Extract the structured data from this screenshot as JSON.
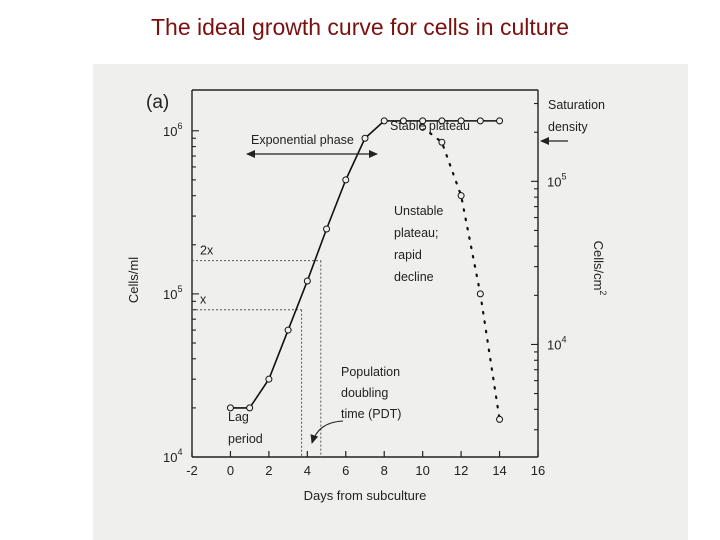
{
  "slide": {
    "title": "The ideal growth curve for cells in culture"
  },
  "chart_data": {
    "type": "line",
    "panel_label": "(a)",
    "xlabel": "Days from subculture",
    "ylabel_left": "Cells/ml",
    "ylabel_right": "Cells/cm",
    "ylabel_right_sup": "2",
    "xlim": [
      -2,
      16
    ],
    "ylim_log10": [
      4,
      6.25
    ],
    "x_ticks": [
      {
        "value": -2,
        "label": "-2"
      },
      {
        "value": 0,
        "label": "0"
      },
      {
        "value": 2,
        "label": "2"
      },
      {
        "value": 4,
        "label": "4"
      },
      {
        "value": 6,
        "label": "6"
      },
      {
        "value": 8,
        "label": "8"
      },
      {
        "value": 10,
        "label": "10"
      },
      {
        "value": 12,
        "label": "12"
      },
      {
        "value": 14,
        "label": "14"
      },
      {
        "value": 16,
        "label": "16"
      }
    ],
    "y_left_ticks": [
      {
        "value": 10000,
        "base": "10",
        "exp": "4"
      },
      {
        "value": 100000,
        "base": "10",
        "exp": "5"
      },
      {
        "value": 1000000,
        "base": "10",
        "exp": "6"
      }
    ],
    "y_right_ticks": [
      {
        "log10_position": 4.69,
        "base": "10",
        "exp": "4"
      },
      {
        "log10_position": 5.69,
        "base": "10",
        "exp": "5"
      }
    ],
    "series": [
      {
        "name": "Growth then stable plateau",
        "style": "solid",
        "points": [
          {
            "x": 0,
            "y": 20000
          },
          {
            "x": 1,
            "y": 20000
          },
          {
            "x": 2,
            "y": 30000
          },
          {
            "x": 3,
            "y": 60000
          },
          {
            "x": 4,
            "y": 120000
          },
          {
            "x": 5,
            "y": 250000
          },
          {
            "x": 6,
            "y": 500000
          },
          {
            "x": 7,
            "y": 900000
          },
          {
            "x": 8,
            "y": 1150000
          },
          {
            "x": 9,
            "y": 1150000
          },
          {
            "x": 10,
            "y": 1150000
          },
          {
            "x": 11,
            "y": 1150000
          },
          {
            "x": 12,
            "y": 1150000
          },
          {
            "x": 13,
            "y": 1150000
          },
          {
            "x": 14,
            "y": 1150000
          }
        ]
      },
      {
        "name": "Unstable plateau; rapid decline",
        "style": "dotted",
        "points": [
          {
            "x": 10,
            "y": 1050000
          },
          {
            "x": 11,
            "y": 850000
          },
          {
            "x": 12,
            "y": 400000
          },
          {
            "x": 13,
            "y": 100000
          },
          {
            "x": 14,
            "y": 17000
          }
        ]
      }
    ],
    "reference_levels": [
      {
        "label": "2x",
        "y": 160000,
        "x_cross": 4.7
      },
      {
        "label": "x",
        "y": 80000,
        "x_cross": 3.7
      }
    ],
    "annotations": {
      "exponential_phase": "Exponential phase",
      "stable_plateau": "Stable plateau",
      "saturation_line1": "Saturation",
      "saturation_line2": "density",
      "unstable_lines": [
        "Unstable",
        "plateau;",
        "rapid",
        "decline"
      ],
      "pdt_lines": [
        "Population",
        "doubling",
        "time (PDT)"
      ],
      "lag_lines": [
        "Lag",
        "period"
      ]
    }
  }
}
